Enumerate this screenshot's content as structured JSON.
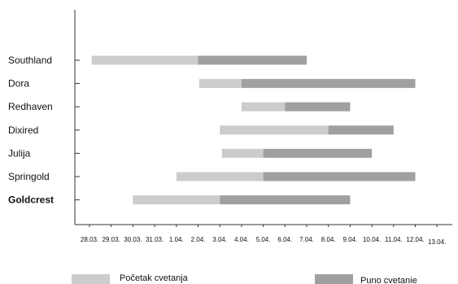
{
  "chart_data": {
    "type": "bar",
    "orientation": "horizontal",
    "stacked": true,
    "title": "",
    "xlabel": "",
    "ylabel": "",
    "x_ticks": [
      "28.03.",
      "29.03.",
      "30.03.",
      "31.03.",
      "1.04.",
      "2.04.",
      "3.04.",
      "4.04.",
      "5.04.",
      "6.04.",
      "7.04.",
      "8.04.",
      "9.04.",
      "10.04.",
      "11.04.",
      "12.04.",
      "13.04."
    ],
    "categories": [
      "Southland",
      "Dora",
      "Redhaven",
      "Dixired",
      "Julija",
      "Springold",
      "Goldcrest"
    ],
    "series": [
      {
        "name": "Početak cvetanja",
        "color": "#cccccc",
        "ranges": [
          [
            28.1,
            2.0
          ],
          [
            2.05,
            4.0
          ],
          [
            4.0,
            6.0
          ],
          [
            3.0,
            8.0
          ],
          [
            3.1,
            5.0
          ],
          [
            1.0,
            5.0
          ],
          [
            30.0,
            3.0
          ]
        ]
      },
      {
        "name": "Puno cvetanie",
        "color": "#a0a0a0",
        "ranges": [
          [
            2.0,
            7.0
          ],
          [
            4.0,
            12.0
          ],
          [
            6.0,
            9.0
          ],
          [
            8.0,
            11.0
          ],
          [
            5.0,
            10.0
          ],
          [
            5.0,
            12.0
          ],
          [
            3.0,
            9.0
          ]
        ]
      }
    ],
    "grid": false,
    "legend": "bottom"
  }
}
